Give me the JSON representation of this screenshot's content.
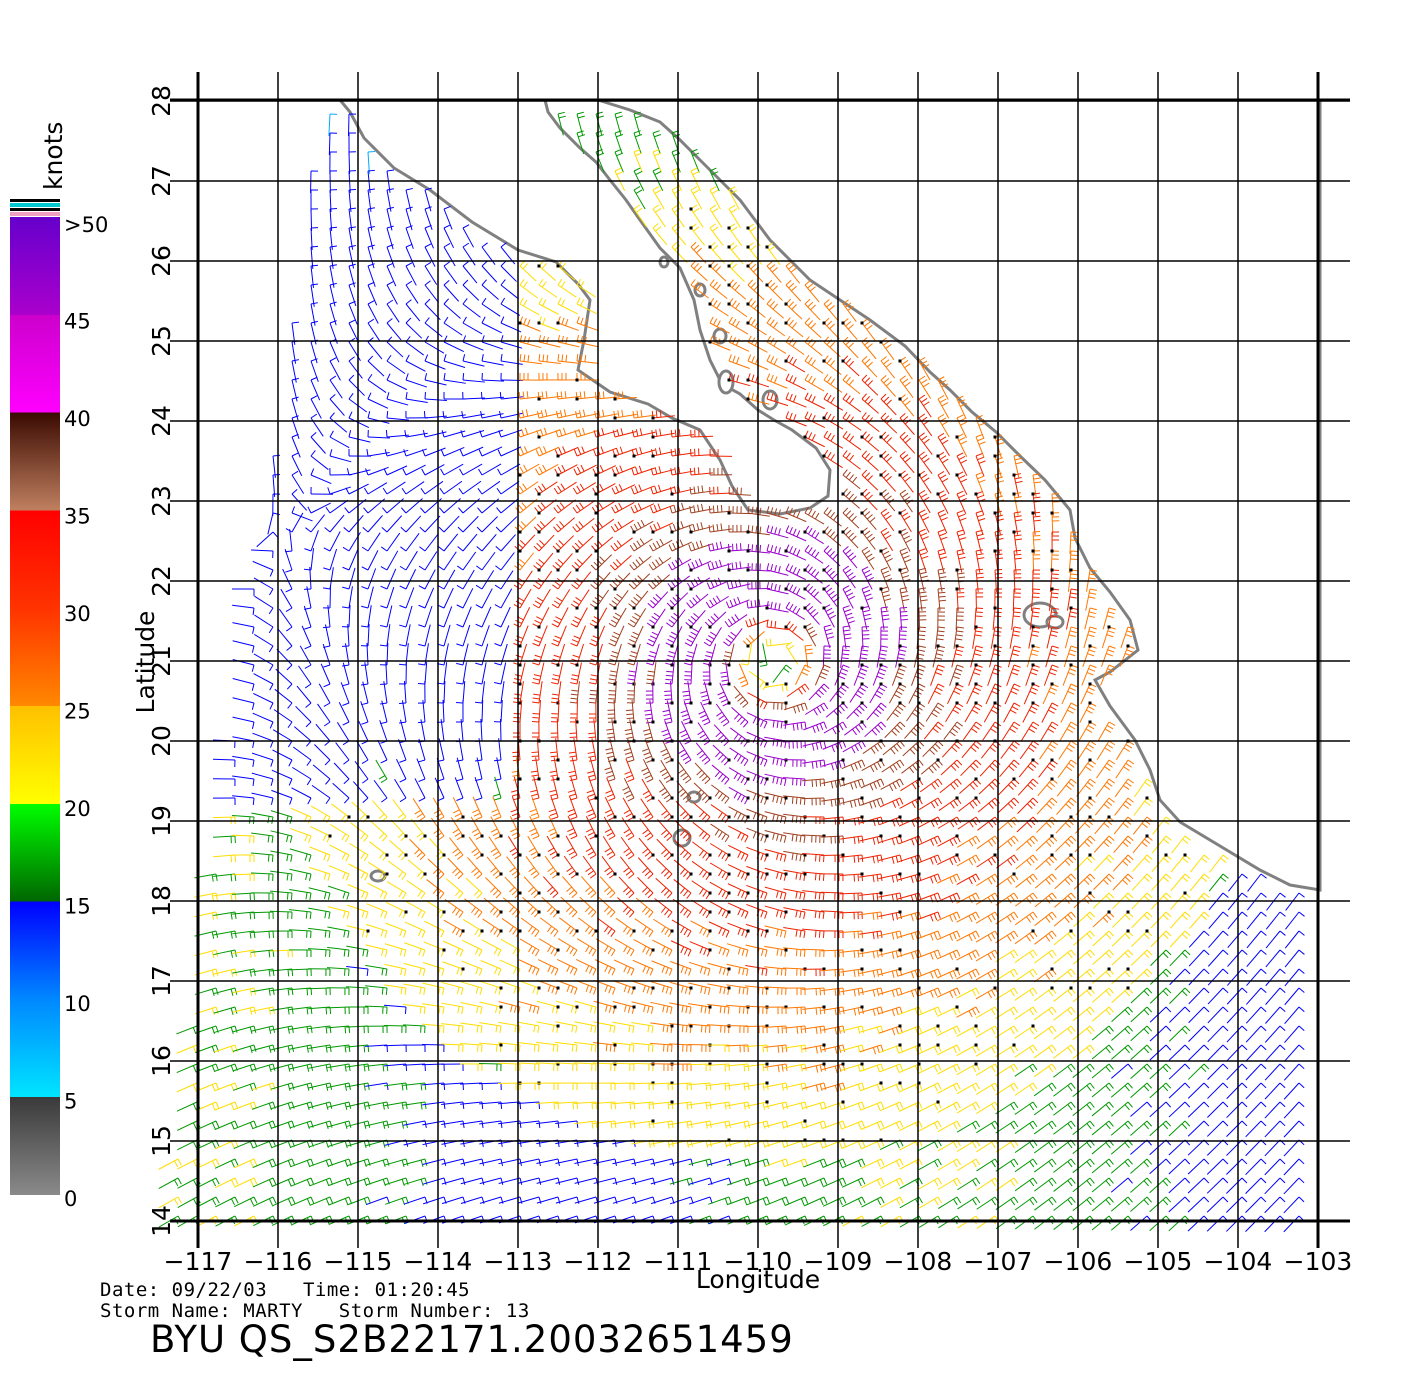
{
  "chart_data": {
    "type": "wind-vector-map",
    "xlabel": "Longitude",
    "ylabel": "Latitude",
    "xlim": [
      -117,
      -103
    ],
    "ylim": [
      14,
      28
    ],
    "x_ticks": [
      "−117",
      "−116",
      "−115",
      "−114",
      "−113",
      "−112",
      "−111",
      "−110",
      "−109",
      "−108",
      "−107",
      "−106",
      "−105",
      "−104",
      "−103"
    ],
    "y_ticks": [
      "14",
      "15",
      "16",
      "17",
      "18",
      "19",
      "20",
      "21",
      "22",
      "23",
      "24",
      "25",
      "26",
      "27",
      "28"
    ],
    "grid": true,
    "storm_center": {
      "lon": -109.8,
      "lat": 21.0
    },
    "colorbar": {
      "title": "knots",
      "labels": [
        "0",
        "5",
        "10",
        "15",
        "20",
        "25",
        "30",
        "35",
        "40",
        "45",
        ">50"
      ],
      "bands": [
        {
          "from": 0,
          "to": 5,
          "colors": [
            "#8a8a8a",
            "#3a3a3a"
          ]
        },
        {
          "from": 5,
          "to": 10,
          "colors": [
            "#00e5ff",
            "#0088ff"
          ]
        },
        {
          "from": 10,
          "to": 15,
          "colors": [
            "#0088ff",
            "#0000ff"
          ]
        },
        {
          "from": 15,
          "to": 20,
          "colors": [
            "#006600",
            "#00ff00"
          ]
        },
        {
          "from": 20,
          "to": 25,
          "colors": [
            "#ffff00",
            "#ffc000"
          ]
        },
        {
          "from": 25,
          "to": 30,
          "colors": [
            "#ff8800",
            "#ff3300"
          ]
        },
        {
          "from": 30,
          "to": 35,
          "colors": [
            "#ff3300",
            "#ff0000"
          ]
        },
        {
          "from": 35,
          "to": 40,
          "colors": [
            "#c08060",
            "#3a0a00"
          ]
        },
        {
          "from": 40,
          "to": 45,
          "colors": [
            "#ff00ff",
            "#cc00cc"
          ]
        },
        {
          "from": 45,
          "to": 50,
          "colors": [
            "#aa00cc",
            "#6600cc"
          ]
        }
      ]
    },
    "legend_placement": "left"
  },
  "footer": {
    "line1": "Date: 09/22/03   Time: 01:20:45",
    "line2": "Storm Name: MARTY   Storm Number: 13",
    "title": "BYU QS_S2B22171.20032651459"
  },
  "colors": {
    "coastline": "#808080",
    "grid": "#000000",
    "vector_grey": "#202020"
  }
}
